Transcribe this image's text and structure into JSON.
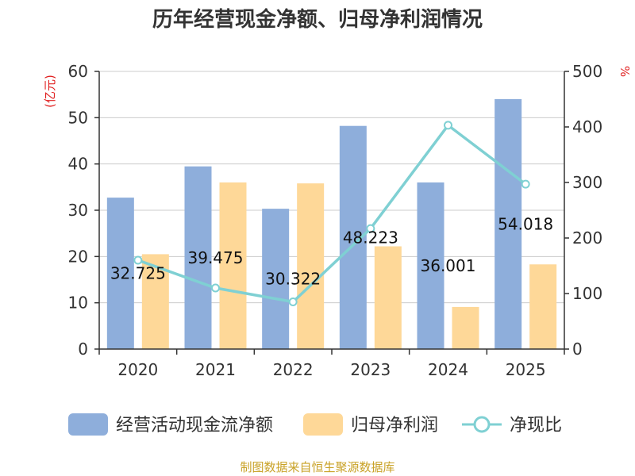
{
  "chart_data": {
    "type": "bar",
    "title": "历年经营现金净额、归母净利润情况",
    "categories": [
      "2020",
      "2021",
      "2022",
      "2023",
      "2024",
      "2025"
    ],
    "series": [
      {
        "name": "经营活动现金流净额",
        "type": "bar",
        "axis": "left",
        "color": "#8eaedb",
        "values": [
          32.725,
          39.475,
          30.322,
          48.223,
          36.001,
          54.018
        ]
      },
      {
        "name": "归母净利润",
        "type": "bar",
        "axis": "left",
        "color": "#fed898",
        "values": [
          20.5,
          36.0,
          35.8,
          22.2,
          9.1,
          18.3
        ]
      },
      {
        "name": "净现比",
        "type": "line",
        "axis": "right",
        "color": "#7fd0d3",
        "values": [
          160,
          110,
          85,
          217,
          403,
          297
        ]
      }
    ],
    "data_labels": [
      "32.725",
      "39.475",
      "30.322",
      "48.223",
      "36.001",
      "54.018"
    ],
    "y_left": {
      "label": "(亿元)",
      "ylim": [
        0,
        60
      ],
      "ticks": [
        0,
        10,
        20,
        30,
        40,
        50,
        60
      ]
    },
    "y_right": {
      "label": "%",
      "ylim": [
        0,
        500
      ],
      "ticks": [
        0,
        100,
        200,
        300,
        400,
        500
      ]
    },
    "grid": true,
    "legend_position": "bottom"
  },
  "source": "制图数据来自恒生聚源数据库"
}
